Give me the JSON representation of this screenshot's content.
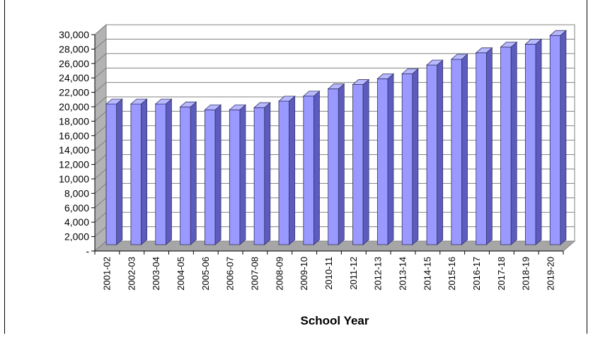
{
  "chart_data": {
    "type": "bar",
    "title": "",
    "xlabel": "School Year",
    "ylabel": "",
    "ylim": [
      0,
      30000
    ],
    "ytick_step": 2000,
    "ytick_labels": [
      "-",
      "2,000",
      "4,000",
      "6,000",
      "8,000",
      "10,000",
      "12,000",
      "14,000",
      "16,000",
      "18,000",
      "20,000",
      "22,000",
      "24,000",
      "26,000",
      "28,000",
      "30,000"
    ],
    "categories": [
      "2001-02",
      "2002-03",
      "2003-04",
      "2004-05",
      "2005-06",
      "2006-07",
      "2007-08",
      "2008-09",
      "2009-10",
      "2010-11",
      "2011-12",
      "2012-13",
      "2013-14",
      "2014-15",
      "2015-16",
      "2016-17",
      "2017-18",
      "2018-19",
      "2019-20"
    ],
    "values": [
      19500,
      19500,
      19500,
      19100,
      18700,
      18700,
      19000,
      19900,
      20600,
      21600,
      22200,
      23000,
      23700,
      24900,
      25700,
      26600,
      27400,
      27800,
      29000
    ],
    "bar_color": "#9999ff",
    "grid": true,
    "style": "3d-column"
  }
}
